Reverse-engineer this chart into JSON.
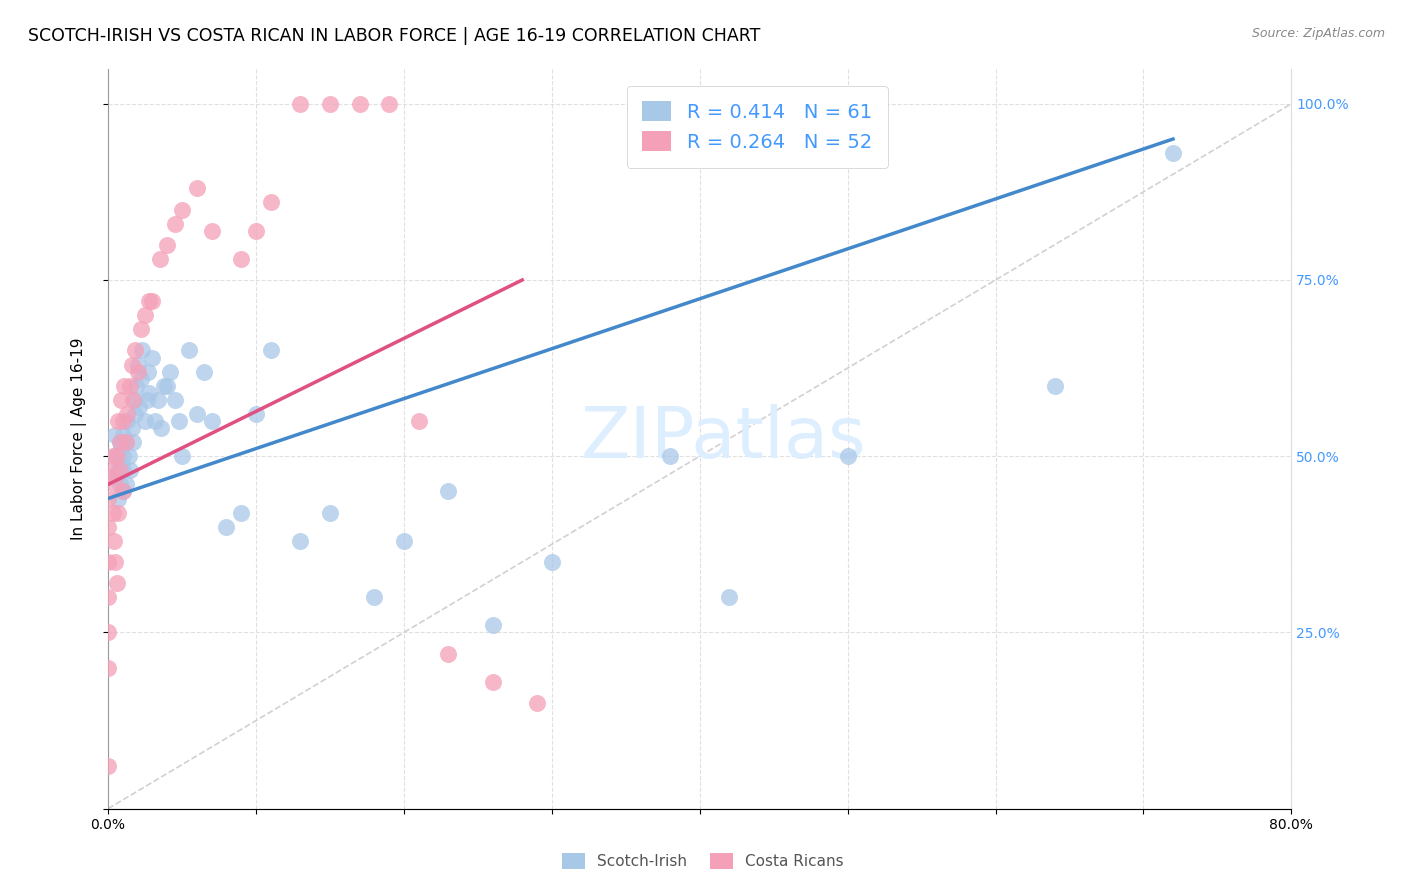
{
  "title": "SCOTCH-IRISH VS COSTA RICAN IN LABOR FORCE | AGE 16-19 CORRELATION CHART",
  "source": "Source: ZipAtlas.com",
  "ylabel": "In Labor Force | Age 16-19",
  "xlim": [
    0.0,
    0.8
  ],
  "ylim": [
    0.0,
    1.05
  ],
  "xtick_positions": [
    0.0,
    0.1,
    0.2,
    0.3,
    0.4,
    0.5,
    0.6,
    0.7,
    0.8
  ],
  "xticklabels": [
    "0.0%",
    "",
    "",
    "",
    "",
    "",
    "",
    "",
    "80.0%"
  ],
  "ytick_positions": [
    0.0,
    0.25,
    0.5,
    0.75,
    1.0
  ],
  "ytick_labels": [
    "",
    "25.0%",
    "50.0%",
    "75.0%",
    "100.0%"
  ],
  "watermark": "ZIPatlas",
  "blue_color": "#a8c8e8",
  "pink_color": "#f4a0b8",
  "blue_line_color": "#4488cc",
  "pink_line_color": "#e05080",
  "diagonal_color": "#cccccc",
  "title_fontsize": 12.5,
  "axis_label_fontsize": 11,
  "tick_fontsize": 10,
  "legend_fontsize": 14,
  "watermark_fontsize": 52,
  "watermark_color": "#ddeeff",
  "grid_color": "#dddddd",
  "background_color": "#ffffff",
  "right_tick_color": "#4499ff",
  "si_x": [
    0.005,
    0.005,
    0.005,
    0.007,
    0.007,
    0.008,
    0.008,
    0.009,
    0.009,
    0.01,
    0.01,
    0.01,
    0.01,
    0.012,
    0.012,
    0.013,
    0.014,
    0.015,
    0.016,
    0.017,
    0.018,
    0.018,
    0.019,
    0.02,
    0.021,
    0.022,
    0.023,
    0.025,
    0.026,
    0.027,
    0.028,
    0.03,
    0.032,
    0.034,
    0.036,
    0.038,
    0.04,
    0.042,
    0.045,
    0.048,
    0.05,
    0.055,
    0.06,
    0.065,
    0.07,
    0.08,
    0.09,
    0.1,
    0.11,
    0.13,
    0.15,
    0.18,
    0.2,
    0.23,
    0.26,
    0.3,
    0.38,
    0.42,
    0.5,
    0.64,
    0.72
  ],
  "si_y": [
    0.47,
    0.5,
    0.53,
    0.44,
    0.48,
    0.46,
    0.52,
    0.49,
    0.51,
    0.45,
    0.48,
    0.5,
    0.53,
    0.46,
    0.52,
    0.55,
    0.5,
    0.48,
    0.54,
    0.52,
    0.58,
    0.56,
    0.6,
    0.63,
    0.57,
    0.61,
    0.65,
    0.55,
    0.58,
    0.62,
    0.59,
    0.64,
    0.55,
    0.58,
    0.54,
    0.6,
    0.6,
    0.62,
    0.58,
    0.55,
    0.5,
    0.65,
    0.56,
    0.62,
    0.55,
    0.4,
    0.42,
    0.56,
    0.65,
    0.38,
    0.42,
    0.3,
    0.38,
    0.45,
    0.26,
    0.35,
    0.5,
    0.3,
    0.5,
    0.6,
    0.93
  ],
  "cr_x": [
    0.0,
    0.0,
    0.0,
    0.0,
    0.0,
    0.0,
    0.0,
    0.0,
    0.003,
    0.003,
    0.004,
    0.004,
    0.005,
    0.005,
    0.006,
    0.006,
    0.007,
    0.007,
    0.008,
    0.008,
    0.009,
    0.01,
    0.01,
    0.011,
    0.012,
    0.013,
    0.015,
    0.016,
    0.017,
    0.018,
    0.02,
    0.022,
    0.025,
    0.028,
    0.03,
    0.035,
    0.04,
    0.045,
    0.05,
    0.06,
    0.07,
    0.09,
    0.1,
    0.11,
    0.13,
    0.15,
    0.17,
    0.19,
    0.21,
    0.23,
    0.26,
    0.29
  ],
  "cr_y": [
    0.47,
    0.44,
    0.4,
    0.35,
    0.3,
    0.25,
    0.2,
    0.06,
    0.5,
    0.42,
    0.48,
    0.38,
    0.46,
    0.35,
    0.5,
    0.32,
    0.55,
    0.42,
    0.52,
    0.48,
    0.58,
    0.55,
    0.45,
    0.6,
    0.52,
    0.56,
    0.6,
    0.63,
    0.58,
    0.65,
    0.62,
    0.68,
    0.7,
    0.72,
    0.72,
    0.78,
    0.8,
    0.83,
    0.85,
    0.88,
    0.82,
    0.78,
    0.82,
    0.86,
    1.0,
    1.0,
    1.0,
    1.0,
    0.55,
    0.22,
    0.18,
    0.15
  ]
}
